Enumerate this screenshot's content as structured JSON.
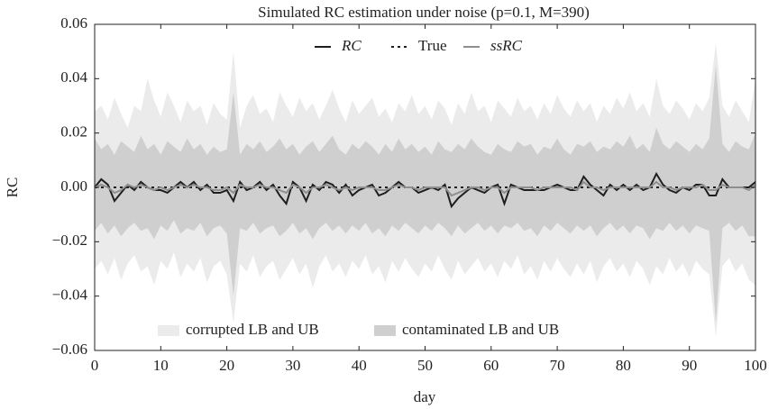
{
  "chart_data": {
    "type": "line",
    "title": "Simulated RC estimation under noise (p=0.1, M=390)",
    "xlabel": "day",
    "ylabel": "RC",
    "xlim": [
      0,
      100
    ],
    "ylim": [
      -0.06,
      0.06
    ],
    "xticks": [
      0,
      10,
      20,
      30,
      40,
      50,
      60,
      70,
      80,
      90,
      100
    ],
    "yticks": [
      {
        "value": -0.06,
        "label": "−0.06"
      },
      {
        "value": -0.04,
        "label": "−0.04"
      },
      {
        "value": -0.02,
        "label": "−0.02"
      },
      {
        "value": 0,
        "label": "0.00"
      },
      0.02,
      0.04,
      0.06
    ],
    "legend_loc": "upper center",
    "band_legend_loc": "lower center",
    "x": [
      0,
      1,
      2,
      3,
      4,
      5,
      6,
      7,
      8,
      9,
      10,
      11,
      12,
      13,
      14,
      15,
      16,
      17,
      18,
      19,
      20,
      21,
      22,
      23,
      24,
      25,
      26,
      27,
      28,
      29,
      30,
      31,
      32,
      33,
      34,
      35,
      36,
      37,
      38,
      39,
      40,
      41,
      42,
      43,
      44,
      45,
      46,
      47,
      48,
      49,
      50,
      51,
      52,
      53,
      54,
      55,
      56,
      57,
      58,
      59,
      60,
      61,
      62,
      63,
      64,
      65,
      66,
      67,
      68,
      69,
      70,
      71,
      72,
      73,
      74,
      75,
      76,
      77,
      78,
      79,
      80,
      81,
      82,
      83,
      84,
      85,
      86,
      87,
      88,
      89,
      90,
      91,
      92,
      93,
      94,
      95,
      96,
      97,
      98,
      99,
      100
    ],
    "bands": [
      {
        "name": "corrupted LB and UB",
        "color": "#ebebeb",
        "upper": [
          0.028,
          0.03,
          0.025,
          0.033,
          0.027,
          0.022,
          0.03,
          0.028,
          0.04,
          0.032,
          0.026,
          0.035,
          0.03,
          0.024,
          0.032,
          0.028,
          0.03,
          0.023,
          0.031,
          0.027,
          0.025,
          0.05,
          0.022,
          0.03,
          0.034,
          0.027,
          0.029,
          0.024,
          0.035,
          0.03,
          0.026,
          0.033,
          0.028,
          0.031,
          0.025,
          0.03,
          0.036,
          0.029,
          0.024,
          0.032,
          0.027,
          0.03,
          0.033,
          0.026,
          0.029,
          0.024,
          0.031,
          0.028,
          0.034,
          0.027,
          0.03,
          0.025,
          0.032,
          0.029,
          0.023,
          0.031,
          0.027,
          0.035,
          0.028,
          0.03,
          0.024,
          0.032,
          0.029,
          0.026,
          0.033,
          0.028,
          0.03,
          0.025,
          0.031,
          0.027,
          0.034,
          0.029,
          0.026,
          0.032,
          0.028,
          0.031,
          0.024,
          0.03,
          0.027,
          0.033,
          0.029,
          0.035,
          0.028,
          0.031,
          0.026,
          0.04,
          0.03,
          0.027,
          0.032,
          0.029,
          0.025,
          0.031,
          0.028,
          0.033,
          0.053,
          0.03,
          0.026,
          0.032,
          0.028,
          0.024,
          0.04
        ],
        "lower": [
          -0.03,
          -0.027,
          -0.032,
          -0.026,
          -0.034,
          -0.028,
          -0.025,
          -0.031,
          -0.029,
          -0.036,
          -0.027,
          -0.03,
          -0.024,
          -0.033,
          -0.028,
          -0.031,
          -0.026,
          -0.035,
          -0.029,
          -0.027,
          -0.032,
          -0.05,
          -0.028,
          -0.031,
          -0.025,
          -0.033,
          -0.029,
          -0.027,
          -0.034,
          -0.03,
          -0.026,
          -0.032,
          -0.028,
          -0.037,
          -0.029,
          -0.025,
          -0.031,
          -0.028,
          -0.033,
          -0.027,
          -0.03,
          -0.025,
          -0.032,
          -0.029,
          -0.035,
          -0.027,
          -0.031,
          -0.026,
          -0.03,
          -0.033,
          -0.028,
          -0.031,
          -0.025,
          -0.03,
          -0.034,
          -0.027,
          -0.032,
          -0.029,
          -0.026,
          -0.031,
          -0.028,
          -0.033,
          -0.027,
          -0.03,
          -0.025,
          -0.032,
          -0.029,
          -0.034,
          -0.027,
          -0.031,
          -0.026,
          -0.03,
          -0.033,
          -0.028,
          -0.032,
          -0.027,
          -0.035,
          -0.029,
          -0.026,
          -0.031,
          -0.028,
          -0.033,
          -0.027,
          -0.03,
          -0.036,
          -0.029,
          -0.032,
          -0.026,
          -0.031,
          -0.028,
          -0.033,
          -0.027,
          -0.03,
          -0.032,
          -0.055,
          -0.029,
          -0.026,
          -0.031,
          -0.028,
          -0.034,
          -0.036
        ]
      },
      {
        "name": "contaminated LB and UB",
        "color": "#cfcfcf",
        "upper": [
          0.018,
          0.014,
          0.016,
          0.012,
          0.017,
          0.015,
          0.013,
          0.019,
          0.014,
          0.016,
          0.012,
          0.017,
          0.015,
          0.013,
          0.018,
          0.014,
          0.016,
          0.012,
          0.015,
          0.013,
          0.014,
          0.035,
          0.012,
          0.016,
          0.014,
          0.017,
          0.013,
          0.015,
          0.018,
          0.014,
          0.016,
          0.012,
          0.015,
          0.017,
          0.013,
          0.016,
          0.019,
          0.014,
          0.012,
          0.016,
          0.014,
          0.017,
          0.015,
          0.012,
          0.016,
          0.013,
          0.018,
          0.014,
          0.016,
          0.013,
          0.015,
          0.012,
          0.017,
          0.014,
          0.013,
          0.016,
          0.014,
          0.018,
          0.015,
          0.013,
          0.012,
          0.016,
          0.014,
          0.013,
          0.017,
          0.015,
          0.016,
          0.012,
          0.015,
          0.014,
          0.018,
          0.014,
          0.012,
          0.016,
          0.015,
          0.017,
          0.013,
          0.015,
          0.014,
          0.017,
          0.015,
          0.019,
          0.014,
          0.016,
          0.013,
          0.022,
          0.016,
          0.014,
          0.017,
          0.015,
          0.013,
          0.016,
          0.014,
          0.018,
          0.045,
          0.016,
          0.013,
          0.017,
          0.015,
          0.014,
          0.02
        ],
        "lower": [
          -0.016,
          -0.013,
          -0.017,
          -0.014,
          -0.018,
          -0.015,
          -0.013,
          -0.016,
          -0.015,
          -0.019,
          -0.014,
          -0.016,
          -0.012,
          -0.017,
          -0.015,
          -0.016,
          -0.013,
          -0.018,
          -0.015,
          -0.014,
          -0.017,
          -0.04,
          -0.015,
          -0.016,
          -0.013,
          -0.017,
          -0.015,
          -0.014,
          -0.018,
          -0.016,
          -0.013,
          -0.017,
          -0.015,
          -0.019,
          -0.015,
          -0.013,
          -0.016,
          -0.014,
          -0.017,
          -0.014,
          -0.016,
          -0.013,
          -0.017,
          -0.015,
          -0.018,
          -0.014,
          -0.016,
          -0.013,
          -0.015,
          -0.017,
          -0.014,
          -0.016,
          -0.013,
          -0.015,
          -0.018,
          -0.014,
          -0.017,
          -0.015,
          -0.013,
          -0.016,
          -0.014,
          -0.017,
          -0.014,
          -0.015,
          -0.013,
          -0.016,
          -0.015,
          -0.018,
          -0.014,
          -0.016,
          -0.013,
          -0.015,
          -0.017,
          -0.014,
          -0.016,
          -0.014,
          -0.018,
          -0.015,
          -0.013,
          -0.016,
          -0.014,
          -0.017,
          -0.014,
          -0.015,
          -0.019,
          -0.015,
          -0.016,
          -0.013,
          -0.016,
          -0.014,
          -0.017,
          -0.014,
          -0.015,
          -0.016,
          -0.05,
          -0.015,
          -0.013,
          -0.016,
          -0.014,
          -0.018,
          -0.018
        ]
      }
    ],
    "series": [
      {
        "name": "RC",
        "color": "#1e1e1e",
        "dash": "none",
        "values": [
          0.0,
          0.003,
          0.001,
          -0.005,
          -0.002,
          0.001,
          -0.001,
          0.002,
          0.0,
          -0.001,
          -0.001,
          -0.002,
          0.0,
          0.002,
          0.0,
          0.002,
          -0.001,
          0.001,
          -0.002,
          -0.002,
          -0.001,
          -0.005,
          0.002,
          -0.001,
          0.0,
          0.002,
          -0.001,
          0.001,
          -0.003,
          -0.006,
          0.002,
          0.0,
          -0.005,
          0.001,
          -0.001,
          0.002,
          0.001,
          -0.002,
          0.001,
          -0.003,
          -0.001,
          0.0,
          0.001,
          -0.003,
          -0.002,
          0.0,
          0.002,
          0.0,
          0.0,
          -0.002,
          -0.001,
          0.0,
          -0.001,
          0.001,
          -0.007,
          -0.004,
          -0.002,
          0.0,
          -0.001,
          -0.002,
          0.0,
          0.001,
          -0.006,
          0.001,
          0.0,
          -0.001,
          -0.001,
          -0.001,
          -0.001,
          0.0,
          0.001,
          0.0,
          -0.001,
          -0.001,
          0.004,
          0.001,
          -0.001,
          -0.003,
          0.001,
          -0.001,
          0.001,
          -0.001,
          0.001,
          -0.001,
          0.0,
          0.005,
          0.001,
          -0.001,
          -0.002,
          0.0,
          -0.001,
          0.001,
          0.001,
          -0.003,
          -0.003,
          0.003,
          0.0,
          0.0,
          0.0,
          0.0,
          0.002
        ]
      },
      {
        "name": "True",
        "color": "#1e1e1e",
        "dash": "3 4",
        "values": [
          0,
          0,
          0,
          0,
          0,
          0,
          0,
          0,
          0,
          0,
          0,
          0,
          0,
          0,
          0,
          0,
          0,
          0,
          0,
          0,
          0,
          0,
          0,
          0,
          0,
          0,
          0,
          0,
          0,
          0,
          0,
          0,
          0,
          0,
          0,
          0,
          0,
          0,
          0,
          0,
          0,
          0,
          0,
          0,
          0,
          0,
          0,
          0,
          0,
          0,
          0,
          0,
          0,
          0,
          0,
          0,
          0,
          0,
          0,
          0,
          0,
          0,
          0,
          0,
          0,
          0,
          0,
          0,
          0,
          0,
          0,
          0,
          0,
          0,
          0,
          0,
          0,
          0,
          0,
          0,
          0,
          0,
          0,
          0,
          0,
          0,
          0,
          0,
          0,
          0,
          0,
          0,
          0,
          0,
          0,
          0,
          0,
          0,
          0,
          0,
          0
        ]
      },
      {
        "name": "ssRC",
        "color": "#8f8f8f",
        "dash": "none",
        "values": [
          0.0,
          0.001,
          0.0,
          -0.002,
          -0.001,
          0.001,
          0.0,
          0.001,
          0.0,
          -0.001,
          0.0,
          -0.001,
          0.0,
          0.001,
          0.0,
          0.001,
          0.0,
          0.0,
          -0.001,
          -0.001,
          0.0,
          -0.002,
          0.001,
          0.0,
          0.0,
          0.001,
          0.0,
          0.0,
          -0.001,
          -0.002,
          0.001,
          0.0,
          -0.002,
          0.0,
          0.0,
          0.001,
          0.0,
          -0.001,
          0.0,
          -0.001,
          0.0,
          0.0,
          0.0,
          -0.001,
          -0.001,
          0.0,
          0.001,
          0.0,
          0.0,
          -0.001,
          0.0,
          0.0,
          0.0,
          0.0,
          -0.003,
          -0.002,
          -0.001,
          0.0,
          0.0,
          -0.001,
          0.0,
          0.0,
          -0.002,
          0.0,
          0.0,
          0.0,
          0.0,
          -0.001,
          0.0,
          0.0,
          0.0,
          0.0,
          0.0,
          -0.001,
          0.002,
          0.0,
          0.0,
          -0.001,
          0.0,
          0.0,
          0.0,
          0.0,
          0.0,
          0.0,
          0.0,
          0.002,
          0.0,
          0.0,
          -0.001,
          0.0,
          0.0,
          0.0,
          0.001,
          -0.001,
          -0.001,
          0.001,
          0.0,
          0.0,
          0.0,
          -0.001,
          0.001
        ]
      }
    ]
  }
}
